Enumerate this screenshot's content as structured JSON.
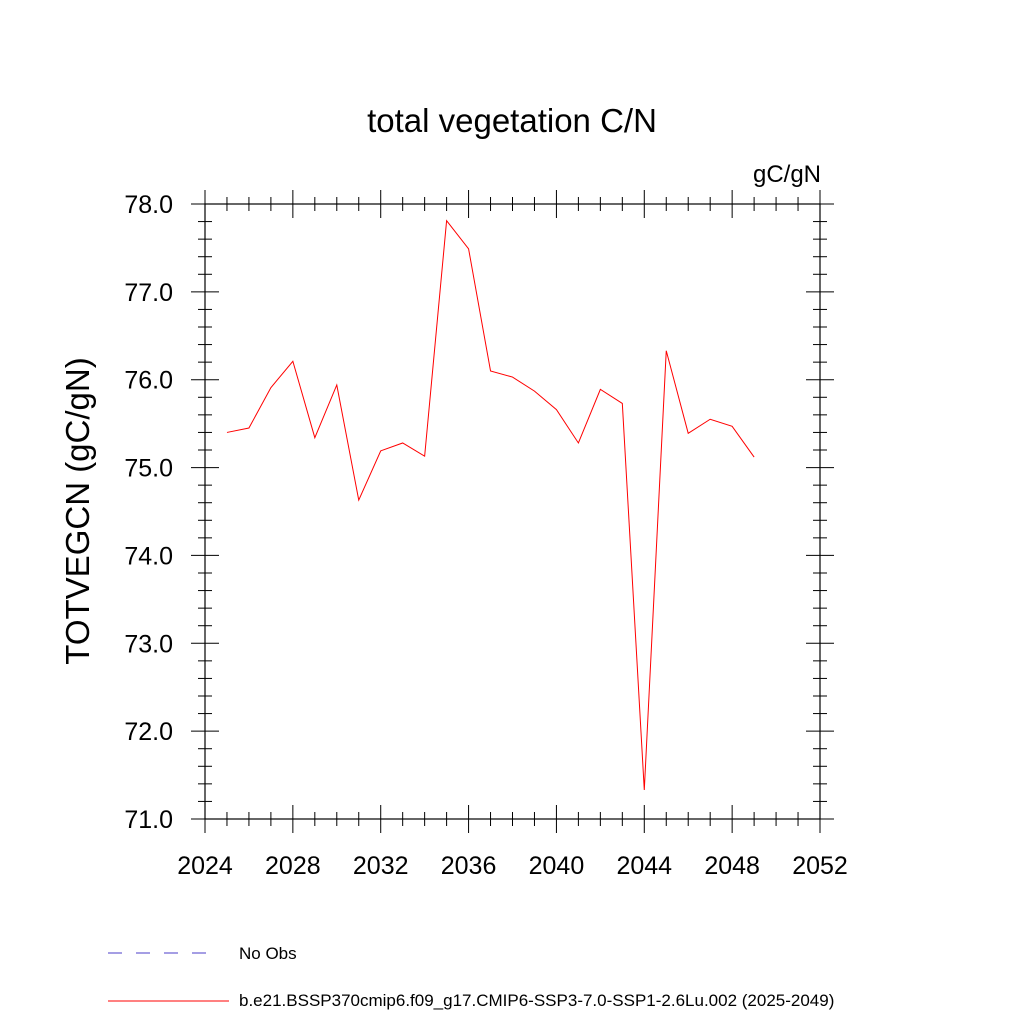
{
  "chart_data": {
    "type": "line",
    "title": "total vegetation C/N",
    "units_label": "gC/gN",
    "ylabel": "TOTVEGCN  (gC/gN)",
    "xlabel": "",
    "xlim": [
      2024,
      2052
    ],
    "ylim": [
      71.0,
      78.0
    ],
    "x_ticks": [
      2024,
      2028,
      2032,
      2036,
      2040,
      2044,
      2048,
      2052
    ],
    "y_ticks": [
      "71.0",
      "72.0",
      "73.0",
      "74.0",
      "75.0",
      "76.0",
      "77.0",
      "78.0"
    ],
    "y_tick_values": [
      71,
      72,
      73,
      74,
      75,
      76,
      77,
      78
    ],
    "grid": false,
    "legend_position": "bottom-left",
    "series": [
      {
        "name": "b.e21.BSSP370cmip6.f09_g17.CMIP6-SSP3-7.0-SSP1-2.6Lu.002 (2025-2049)",
        "color": "#ff0000",
        "style": "solid",
        "x": [
          2025,
          2026,
          2027,
          2028,
          2029,
          2030,
          2031,
          2032,
          2033,
          2034,
          2035,
          2036,
          2037,
          2038,
          2039,
          2040,
          2041,
          2042,
          2043,
          2044,
          2045,
          2046,
          2047,
          2048,
          2049
        ],
        "values": [
          75.4,
          75.45,
          75.91,
          76.21,
          75.34,
          75.94,
          74.63,
          75.19,
          75.28,
          75.13,
          77.81,
          77.49,
          76.1,
          76.03,
          75.87,
          75.66,
          75.28,
          75.89,
          75.73,
          71.33,
          76.33,
          75.39,
          75.55,
          75.47,
          75.12
        ]
      }
    ],
    "legend": [
      {
        "label": "No Obs",
        "color": "#4b3cc8",
        "style": "dashed"
      },
      {
        "label": "b.e21.BSSP370cmip6.f09_g17.CMIP6-SSP3-7.0-SSP1-2.6Lu.002 (2025-2049)",
        "color": "#ff0000",
        "style": "solid"
      }
    ]
  }
}
